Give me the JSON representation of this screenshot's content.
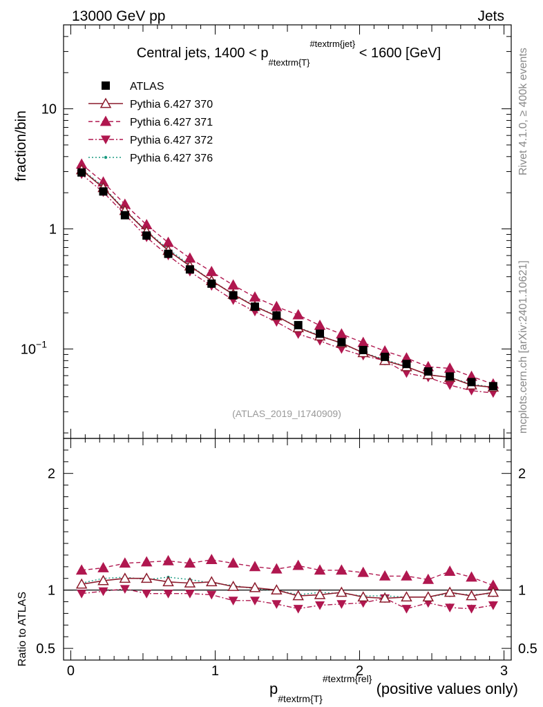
{
  "header": {
    "left": "13000 GeV pp",
    "right": "Jets"
  },
  "side_labels": {
    "rivet": "Rivet 4.1.0, ≥ 400k events",
    "mcplots": "mcplots.cern.ch [arXiv:2401.10621]"
  },
  "colors": {
    "atlas": "#000000",
    "p370": "#8b1a2b",
    "p371": "#b0174f",
    "p372": "#b0174f",
    "p376": "#1a9a80"
  },
  "chart_data": [
    {
      "type": "scatter",
      "title": "Central jets, 1400 < p#textrm{T}#textrm{jet} < 1600 [GeV]",
      "title_parts": {
        "pre": "Central jets, 1400 < p",
        "sub": "#textrm{T}",
        "sup": "#textrm{jet}",
        "post": " < 1600 [GeV]"
      },
      "ylabel": "fraction/bin",
      "yscale": "log",
      "ylim": [
        0.018,
        50
      ],
      "xlim": [
        -0.05,
        3.05
      ],
      "yticks": [
        {
          "value": 10,
          "label": "10"
        },
        {
          "value": 1,
          "label": "1"
        },
        {
          "value": 0.1,
          "label": "10",
          "sup": "−1"
        }
      ],
      "watermark": "(ATLAS_2019_I1740909)",
      "x": [
        0.075,
        0.225,
        0.375,
        0.525,
        0.675,
        0.825,
        0.975,
        1.125,
        1.275,
        1.425,
        1.575,
        1.725,
        1.875,
        2.025,
        2.175,
        2.325,
        2.475,
        2.625,
        2.775,
        2.925
      ],
      "series": [
        {
          "name": "ATLAS",
          "key": "atlas",
          "marker": "square",
          "values": [
            2.95,
            2.05,
            1.3,
            0.88,
            0.62,
            0.46,
            0.35,
            0.28,
            0.225,
            0.19,
            0.158,
            0.134,
            0.114,
            0.098,
            0.086,
            0.075,
            0.065,
            0.059,
            0.053,
            0.049
          ]
        },
        {
          "name": "Pythia 6.427 370",
          "key": "p370",
          "marker": "triangle-up-open",
          "line": "solid",
          "values": [
            3.1,
            2.2,
            1.42,
            0.95,
            0.66,
            0.49,
            0.37,
            0.285,
            0.226,
            0.188,
            0.15,
            0.128,
            0.112,
            0.093,
            0.08,
            0.071,
            0.061,
            0.058,
            0.05,
            0.048
          ]
        },
        {
          "name": "Pythia 6.427 371",
          "key": "p371",
          "marker": "triangle-up",
          "line": "dashed",
          "values": [
            3.45,
            2.45,
            1.6,
            1.08,
            0.77,
            0.57,
            0.44,
            0.34,
            0.27,
            0.225,
            0.192,
            0.157,
            0.133,
            0.113,
            0.096,
            0.084,
            0.071,
            0.069,
            0.059,
            0.051
          ]
        },
        {
          "name": "Pythia 6.427 372",
          "key": "p372",
          "marker": "triangle-down",
          "line": "dashdot",
          "values": [
            2.85,
            2.02,
            1.32,
            0.85,
            0.6,
            0.44,
            0.335,
            0.255,
            0.205,
            0.168,
            0.133,
            0.117,
            0.1,
            0.088,
            0.08,
            0.063,
            0.058,
            0.05,
            0.045,
            0.043
          ]
        },
        {
          "name": "Pythia 6.427 376",
          "key": "p376",
          "marker": "dot",
          "line": "dotted",
          "values": [
            3.15,
            2.25,
            1.44,
            0.96,
            0.68,
            0.5,
            0.37,
            0.288,
            0.228,
            0.189,
            0.151,
            0.13,
            0.111,
            0.093,
            0.082,
            0.071,
            0.061,
            0.058,
            0.051,
            0.048
          ]
        }
      ]
    },
    {
      "type": "scatter",
      "ylabel": "Ratio to ATLAS",
      "xlabel_parts": {
        "pre": "p",
        "sub": "#textrm{T}",
        "sup": "#textrm{rel}",
        "post": " (positive values only)"
      },
      "xlim": [
        -0.05,
        3.05
      ],
      "ylim": [
        0.4,
        2.3
      ],
      "reference_line": 1,
      "xticks": [
        {
          "value": 0,
          "label": "0"
        },
        {
          "value": 1,
          "label": "1"
        },
        {
          "value": 2,
          "label": "2"
        },
        {
          "value": 3,
          "label": "3"
        }
      ],
      "yticks": [
        {
          "value": 0.5,
          "label": "0.5"
        },
        {
          "value": 1,
          "label": "1"
        },
        {
          "value": 2,
          "label": "2"
        }
      ],
      "x": [
        0.075,
        0.225,
        0.375,
        0.525,
        0.675,
        0.825,
        0.975,
        1.125,
        1.275,
        1.425,
        1.575,
        1.725,
        1.875,
        2.025,
        2.175,
        2.325,
        2.475,
        2.625,
        2.775,
        2.925
      ],
      "series": [
        {
          "name": "Pythia 6.427 370",
          "key": "p370",
          "marker": "triangle-up-open",
          "line": "solid",
          "values": [
            1.05,
            1.08,
            1.1,
            1.1,
            1.07,
            1.06,
            1.07,
            1.03,
            1.02,
            1.0,
            0.95,
            0.96,
            0.98,
            0.94,
            0.93,
            0.94,
            0.94,
            0.98,
            0.95,
            0.98
          ],
          "errors": [
            0.01,
            0.01,
            0.01,
            0.01,
            0.01,
            0.015,
            0.015,
            0.02,
            0.02,
            0.02,
            0.025,
            0.025,
            0.025,
            0.03,
            0.03,
            0.03,
            0.03,
            0.03,
            0.03,
            0.03
          ]
        },
        {
          "name": "Pythia 6.427 371",
          "key": "p371",
          "marker": "triangle-up",
          "line": "dashed",
          "values": [
            1.17,
            1.19,
            1.23,
            1.24,
            1.25,
            1.23,
            1.26,
            1.23,
            1.2,
            1.18,
            1.21,
            1.17,
            1.17,
            1.15,
            1.12,
            1.12,
            1.09,
            1.16,
            1.11,
            1.04
          ],
          "errors": [
            0.01,
            0.01,
            0.01,
            0.01,
            0.01,
            0.015,
            0.015,
            0.02,
            0.02,
            0.02,
            0.025,
            0.025,
            0.025,
            0.03,
            0.03,
            0.03,
            0.03,
            0.035,
            0.035,
            0.035
          ]
        },
        {
          "name": "Pythia 6.427 372",
          "key": "p372",
          "marker": "triangle-down",
          "line": "dashdot",
          "values": [
            0.97,
            0.99,
            1.01,
            0.97,
            0.97,
            0.97,
            0.96,
            0.91,
            0.91,
            0.88,
            0.84,
            0.87,
            0.88,
            0.89,
            0.93,
            0.84,
            0.89,
            0.85,
            0.84,
            0.87
          ],
          "errors": [
            0.01,
            0.01,
            0.01,
            0.01,
            0.01,
            0.015,
            0.015,
            0.02,
            0.02,
            0.02,
            0.025,
            0.025,
            0.025,
            0.03,
            0.03,
            0.03,
            0.03,
            0.035,
            0.035,
            0.035
          ]
        },
        {
          "name": "Pythia 6.427 376",
          "key": "p376",
          "marker": "dot",
          "line": "dotted",
          "values": [
            1.06,
            1.1,
            1.11,
            1.09,
            1.11,
            1.09,
            1.06,
            1.04,
            1.01,
            1.0,
            0.96,
            0.98,
            0.97,
            0.95,
            0.95,
            0.94,
            0.94,
            0.97,
            0.96,
            0.97
          ],
          "errors": [
            0.01,
            0.01,
            0.01,
            0.01,
            0.01,
            0.015,
            0.015,
            0.02,
            0.02,
            0.02,
            0.025,
            0.025,
            0.025,
            0.03,
            0.03,
            0.03,
            0.03,
            0.03,
            0.03,
            0.03
          ]
        }
      ]
    }
  ]
}
